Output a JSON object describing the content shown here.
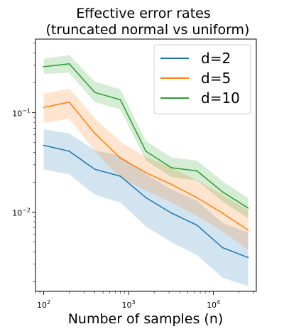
{
  "chart_data": {
    "type": "line",
    "title_line1": "Effective error rates",
    "title_line2": "(truncated normal vs uniform)",
    "xlabel": "Number of samples (n)",
    "ylabel": "",
    "xscale": "log",
    "yscale": "log",
    "xlim": [
      80,
      32000
    ],
    "ylim": [
      0.0016,
      0.55
    ],
    "x_ticks": [
      {
        "value": 100,
        "base": "10",
        "exp": "2"
      },
      {
        "value": 1000,
        "base": "10",
        "exp": "3"
      },
      {
        "value": 10000,
        "base": "10",
        "exp": "4"
      }
    ],
    "y_ticks": [
      {
        "value": 0.1,
        "base": "10",
        "exp": "−1"
      },
      {
        "value": 0.01,
        "base": "10",
        "exp": "−2"
      }
    ],
    "legend_position": "top-right",
    "x": [
      100,
      200,
      400,
      800,
      1600,
      3200,
      6400,
      12800,
      25600
    ],
    "series": [
      {
        "name": "d=2",
        "color": "#1f77b4",
        "values": [
          0.047,
          0.041,
          0.027,
          0.023,
          0.014,
          0.0098,
          0.0074,
          0.0044,
          0.0035
        ],
        "lower": [
          0.027,
          0.024,
          0.015,
          0.0125,
          0.0072,
          0.005,
          0.0037,
          0.0022,
          0.0018
        ],
        "upper": [
          0.068,
          0.062,
          0.042,
          0.037,
          0.024,
          0.017,
          0.013,
          0.0078,
          0.0062
        ]
      },
      {
        "name": "d=5",
        "color": "#ff7f0e",
        "values": [
          0.113,
          0.128,
          0.062,
          0.035,
          0.025,
          0.019,
          0.014,
          0.0098,
          0.0066
        ],
        "lower": [
          0.079,
          0.087,
          0.041,
          0.022,
          0.0165,
          0.0125,
          0.0092,
          0.0064,
          0.0042
        ],
        "upper": [
          0.155,
          0.175,
          0.088,
          0.051,
          0.036,
          0.028,
          0.021,
          0.0148,
          0.0105
        ]
      },
      {
        "name": "d=10",
        "color": "#2ca02c",
        "values": [
          0.29,
          0.31,
          0.16,
          0.135,
          0.041,
          0.028,
          0.026,
          0.016,
          0.011
        ],
        "lower": [
          0.245,
          0.252,
          0.128,
          0.108,
          0.033,
          0.0225,
          0.0208,
          0.0128,
          0.0087
        ],
        "upper": [
          0.348,
          0.38,
          0.205,
          0.172,
          0.052,
          0.0355,
          0.033,
          0.0205,
          0.0138
        ]
      }
    ]
  }
}
